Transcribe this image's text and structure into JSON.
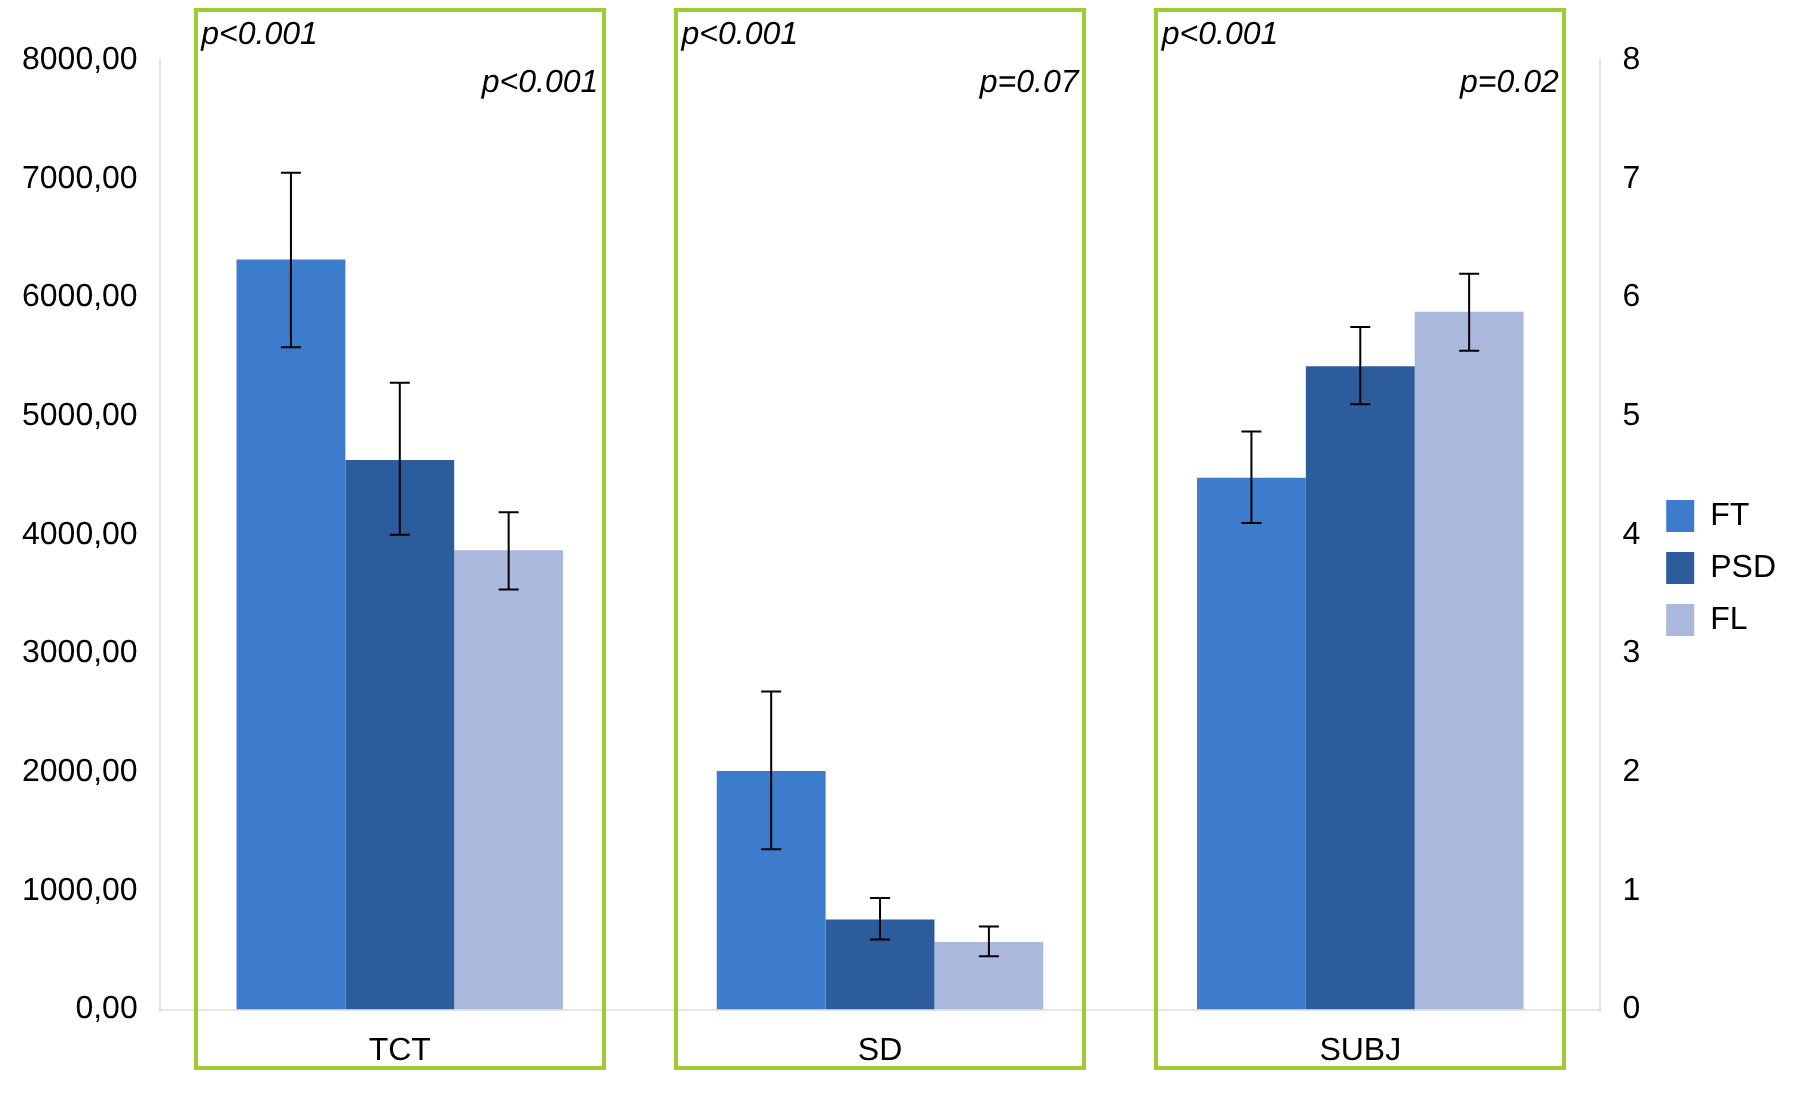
{
  "chart_data": {
    "type": "bar",
    "categories": [
      "TCT",
      "SD",
      "SUBJ"
    ],
    "series": [
      {
        "name": "FT",
        "color": "#3d7ccc",
        "values": [
          6320,
          2010,
          null
        ],
        "errors": [
          [
            5580,
            7050
          ],
          [
            1350,
            2680
          ],
          null
        ]
      },
      {
        "name": "PSD",
        "color": "#2d5c9c",
        "values": [
          4630,
          760,
          null
        ],
        "errors": [
          [
            4000,
            5280
          ],
          [
            590,
            940
          ],
          null
        ]
      },
      {
        "name": "FL",
        "color": "#a9b8dc",
        "values": [
          3870,
          570,
          null
        ],
        "errors": [
          [
            3540,
            4190
          ],
          [
            450,
            700
          ],
          null
        ]
      },
      {
        "color": "#3d7ccc",
        "axis": "y2",
        "values": [
          null,
          null,
          4.48
        ],
        "errors": [
          null,
          null,
          [
            4.1,
            4.87
          ]
        ]
      },
      {
        "color": "#2d5c9c",
        "axis": "y2",
        "values": [
          null,
          null,
          5.42
        ],
        "errors": [
          null,
          null,
          [
            5.1,
            5.75
          ]
        ]
      },
      {
        "color": "#a9b8dc",
        "axis": "y2",
        "values": [
          null,
          null,
          5.88
        ],
        "errors": [
          null,
          null,
          [
            5.55,
            6.2
          ]
        ]
      }
    ],
    "ylim": [
      0,
      8000
    ],
    "yticks": [
      {
        "value": 0,
        "label": "0,00"
      },
      {
        "value": 1000,
        "label": "1000,00"
      },
      {
        "value": 2000,
        "label": "2000,00"
      },
      {
        "value": 3000,
        "label": "3000,00"
      },
      {
        "value": 4000,
        "label": "4000,00"
      },
      {
        "value": 5000,
        "label": "5000,00"
      },
      {
        "value": 6000,
        "label": "6000,00"
      },
      {
        "value": 7000,
        "label": "7000,00"
      },
      {
        "value": 8000,
        "label": "8000,00"
      }
    ],
    "y2lim": [
      0,
      8
    ],
    "y2ticks": [
      0,
      1,
      2,
      3,
      4,
      5,
      6,
      7,
      8
    ],
    "annotations": [
      "p<0.001",
      "p<0.001",
      "p<0.001",
      "p=0.07",
      "p<0.001",
      "p=0.02"
    ],
    "legend": "right",
    "grid": false
  }
}
